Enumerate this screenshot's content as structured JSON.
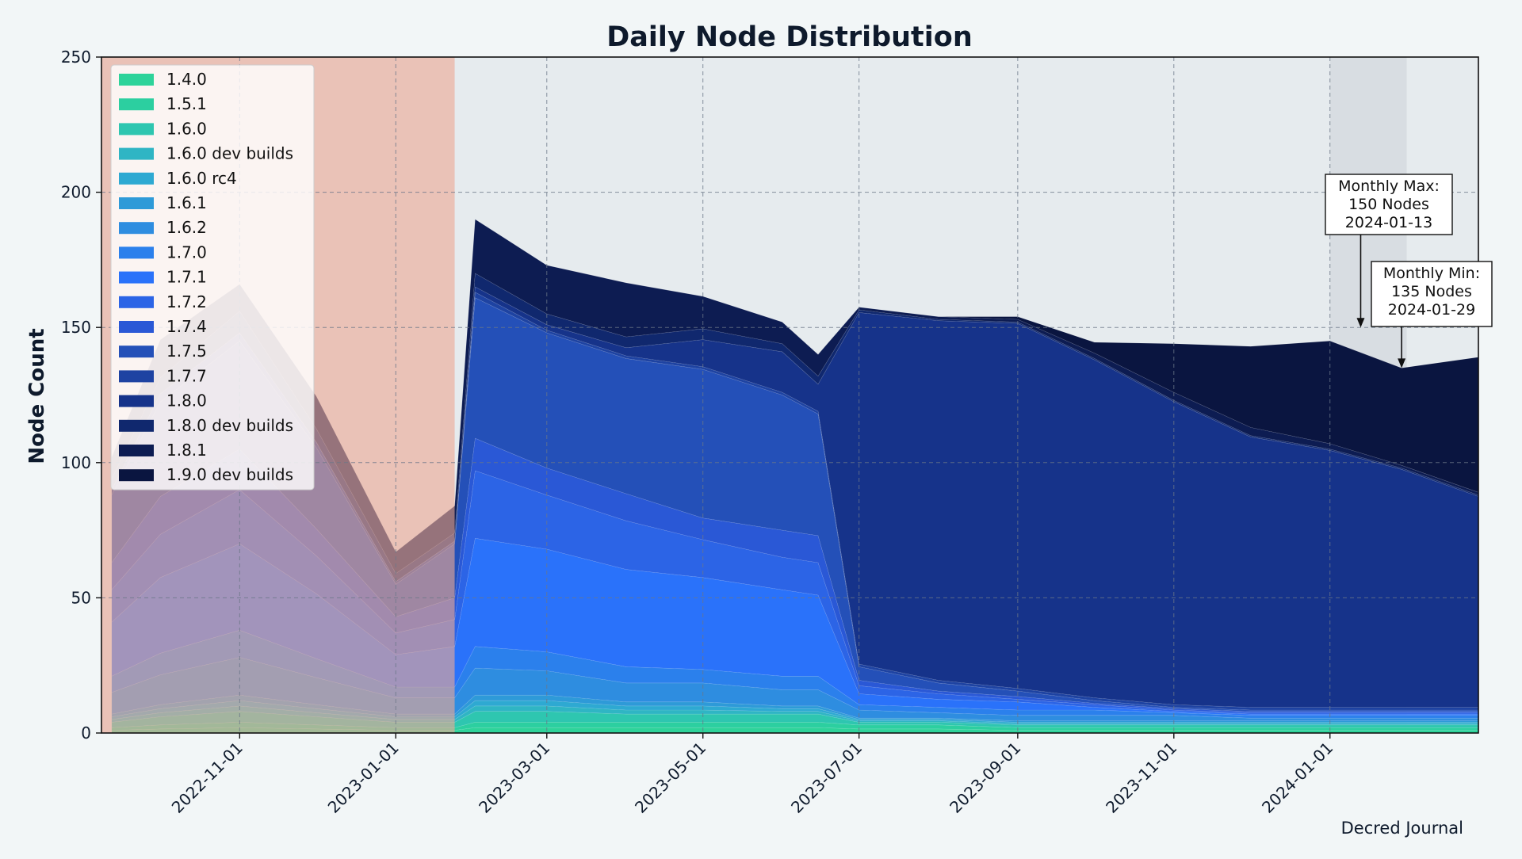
{
  "chart_data": {
    "type": "area",
    "stacked": true,
    "title": "Daily Node Distribution",
    "ylabel": "Node Count",
    "xlabel": "",
    "ylim": [
      0,
      250
    ],
    "xlim": [
      "2022-09-08",
      "2024-02-28"
    ],
    "yticks": [
      0,
      50,
      100,
      150,
      200,
      250
    ],
    "xticks": [
      "2022-11-01",
      "2023-01-01",
      "2023-03-01",
      "2023-05-01",
      "2023-07-01",
      "2023-09-01",
      "2023-11-01",
      "2024-01-01"
    ],
    "grid": true,
    "legend_position": "top-left",
    "watermark": "Decred Journal",
    "colors": {
      "background": "#f2f6f7",
      "plot_background": "#e6ebee",
      "unreliable_region": "#eba994",
      "highlight_month": "#d8dde2",
      "title": "#0e1a2c"
    },
    "shaded_regions": [
      {
        "from": "2022-09-08",
        "to": "2023-01-24",
        "color": "#eba994"
      },
      {
        "from": "2024-01-01",
        "to": "2024-01-31",
        "color": "#d8dde2"
      }
    ],
    "annotations": [
      {
        "text": "Monthly Max:\n150 Nodes\n2024-01-13",
        "date": "2024-01-13",
        "value": 150
      },
      {
        "text": "Monthly Min:\n135 Nodes\n2024-01-29",
        "date": "2024-01-29",
        "value": 135
      }
    ],
    "x": [
      "2022-09-12",
      "2022-10-01",
      "2022-11-01",
      "2022-12-01",
      "2023-01-01",
      "2023-01-24",
      "2023-02-01",
      "2023-03-01",
      "2023-04-01",
      "2023-05-01",
      "2023-06-01",
      "2023-06-15",
      "2023-07-01",
      "2023-08-01",
      "2023-09-01",
      "2023-10-01",
      "2023-11-01",
      "2023-12-01",
      "2024-01-01",
      "2024-01-29",
      "2024-02-28"
    ],
    "series": [
      {
        "name": "1.4.0",
        "color": "#2ed39a",
        "values": [
          1,
          1.5,
          2,
          1.5,
          1,
          1,
          2,
          2,
          2,
          2,
          2,
          2,
          1.5,
          1.5,
          1,
          1,
          1,
          1,
          1,
          1,
          1
        ]
      },
      {
        "name": "1.5.1",
        "color": "#2ccfa0",
        "values": [
          1,
          1.5,
          2,
          1.5,
          1,
          1,
          2,
          2,
          2,
          2,
          2,
          2,
          1.5,
          1.5,
          1,
          1,
          1,
          1,
          1,
          1,
          1
        ]
      },
      {
        "name": "1.6.0",
        "color": "#2ec6b0",
        "values": [
          2,
          3,
          4,
          3,
          2,
          2,
          4,
          4,
          3,
          3,
          3,
          3,
          1,
          1,
          1,
          1,
          1,
          1,
          1,
          1,
          1
        ]
      },
      {
        "name": "1.6.0 dev builds",
        "color": "#2fb5c4",
        "values": [
          1,
          1.5,
          2,
          1.5,
          1,
          1,
          2,
          2,
          1.5,
          1.5,
          1,
          1,
          0.5,
          0.5,
          0.5,
          0.5,
          0.5,
          0.5,
          0.5,
          0.5,
          0.5
        ]
      },
      {
        "name": "1.6.0 rc4",
        "color": "#2ea9d2",
        "values": [
          1,
          1.5,
          2,
          1.5,
          1,
          1,
          2,
          2,
          1.5,
          1.5,
          1,
          1,
          0.5,
          0.5,
          0.5,
          0.5,
          0.5,
          0.5,
          0.5,
          0.5,
          0.5
        ]
      },
      {
        "name": "1.6.1",
        "color": "#2e9ad8",
        "values": [
          1,
          1.5,
          2,
          1.5,
          1,
          1,
          2,
          2,
          1.5,
          1.5,
          1,
          1,
          0.5,
          0.5,
          0.5,
          0.5,
          0.5,
          0.5,
          0.5,
          0.5,
          0.5
        ]
      },
      {
        "name": "1.6.2",
        "color": "#2e8de0",
        "values": [
          8,
          11,
          14,
          10,
          6,
          6,
          10,
          9,
          7,
          7,
          6,
          6,
          3,
          2,
          2,
          2,
          2,
          1,
          1,
          1,
          1
        ]
      },
      {
        "name": "1.7.0",
        "color": "#2b80ec",
        "values": [
          6,
          8,
          10,
          7,
          4,
          4,
          8,
          7,
          6,
          5,
          5,
          5,
          2,
          2,
          2,
          2,
          1,
          1,
          1,
          1,
          1
        ]
      },
      {
        "name": "1.7.1",
        "color": "#2a72fa",
        "values": [
          20,
          28,
          32,
          24,
          12,
          15,
          40,
          38,
          36,
          34,
          32,
          30,
          4,
          3,
          3,
          1,
          0.5,
          0.5,
          0.5,
          0.5,
          0.5
        ]
      },
      {
        "name": "1.7.2",
        "color": "#2c64e6",
        "values": [
          12,
          16,
          20,
          14,
          8,
          10,
          25,
          20,
          18,
          14,
          12,
          12,
          3,
          2,
          1,
          1,
          0.5,
          0.5,
          0.5,
          0.5,
          0.5
        ]
      },
      {
        "name": "1.7.4",
        "color": "#2a58d6",
        "values": [
          10,
          14,
          15,
          10,
          6,
          8,
          12,
          10,
          10,
          8,
          10,
          10,
          2,
          1,
          1,
          0.5,
          0.5,
          0.5,
          0.5,
          0.5,
          0.5
        ]
      },
      {
        "name": "1.7.5",
        "color": "#2450b8",
        "values": [
          25,
          35,
          40,
          30,
          12,
          20,
          52,
          50,
          50,
          55,
          50,
          45,
          5,
          3,
          2,
          1,
          0.5,
          0.5,
          0.5,
          0.5,
          0.5
        ]
      },
      {
        "name": "1.7.7",
        "color": "#1e43a2",
        "values": [
          2,
          3,
          3,
          2,
          1,
          1,
          2,
          1,
          1,
          1,
          1,
          1,
          1,
          1,
          1,
          1,
          1,
          1,
          1,
          1,
          1
        ]
      },
      {
        "name": "1.8.0",
        "color": "#16338a",
        "values": [
          0,
          0,
          0,
          0,
          0,
          0,
          2,
          2,
          3,
          10,
          15,
          10,
          130,
          133,
          135,
          125,
          112,
          100,
          95,
          88,
          78
        ]
      },
      {
        "name": "1.8.0 dev builds",
        "color": "#10286e",
        "values": [
          4,
          6,
          8,
          5,
          3,
          3,
          5,
          4,
          4,
          4,
          3,
          3,
          1,
          0.5,
          0.5,
          0.5,
          0.5,
          0.5,
          0.5,
          0.5,
          0.5
        ]
      },
      {
        "name": "1.8.1",
        "color": "#0d1c52",
        "values": [
          8,
          14,
          10,
          12,
          8,
          10,
          20,
          18,
          20,
          12,
          8,
          8,
          1,
          1,
          1,
          2,
          3,
          3,
          2,
          1,
          1
        ]
      },
      {
        "name": "1.9.0 dev builds",
        "color": "#0a1540",
        "values": [
          0,
          0,
          0,
          0,
          0,
          0,
          0,
          0,
          0,
          0,
          0,
          0,
          0,
          0,
          1,
          4,
          18,
          30,
          38,
          36,
          50
        ]
      }
    ]
  }
}
